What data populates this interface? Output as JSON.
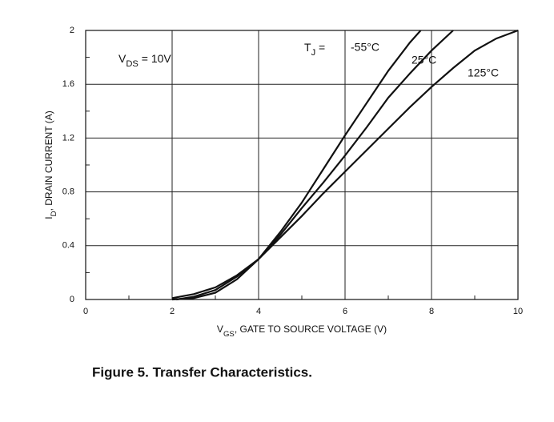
{
  "chart_data": {
    "type": "line",
    "caption": "Figure 5. Transfer Characteristics.",
    "xlabel": [
      "V",
      "GS",
      ", GATE TO SOURCE VOLTAGE (V)"
    ],
    "ylabel": [
      "I",
      "D",
      ", DRAIN CURRENT (A)"
    ],
    "annotation": [
      "V",
      "DS",
      " = 10V"
    ],
    "series_prefix": [
      "T",
      "J",
      " = "
    ],
    "xlim": [
      0,
      10
    ],
    "xticks": [
      0,
      2,
      4,
      6,
      8,
      10
    ],
    "xminorticks": [
      1,
      3,
      5,
      7,
      9
    ],
    "ylim": [
      0,
      2
    ],
    "yticks": [
      0,
      0.4,
      0.8,
      1.2,
      1.6,
      2
    ],
    "yminorticks": [
      0.2,
      0.6,
      1,
      1.4,
      1.8
    ],
    "grid": true,
    "series": [
      {
        "name": "-55°C",
        "color": "#111111",
        "x": [
          2,
          2.5,
          3,
          3.5,
          4,
          4.5,
          5,
          5.5,
          6,
          6.5,
          7,
          7.5,
          7.75
        ],
        "values": [
          0,
          0.01,
          0.05,
          0.15,
          0.3,
          0.5,
          0.72,
          0.97,
          1.22,
          1.46,
          1.7,
          1.91,
          2.0
        ]
      },
      {
        "name": "25°C",
        "color": "#111111",
        "x": [
          2.1,
          2.5,
          3,
          3.5,
          4,
          4.5,
          5,
          5.5,
          6,
          6.5,
          7,
          7.5,
          8,
          8.5
        ],
        "values": [
          0,
          0.02,
          0.07,
          0.17,
          0.3,
          0.48,
          0.68,
          0.87,
          1.07,
          1.28,
          1.5,
          1.68,
          1.85,
          2.0
        ]
      },
      {
        "name": "125°C",
        "color": "#111111",
        "x": [
          2,
          2.5,
          3,
          3.5,
          4,
          4.5,
          5,
          5.5,
          6,
          6.5,
          7,
          7.5,
          8,
          8.5,
          9,
          9.5,
          10
        ],
        "values": [
          0.01,
          0.04,
          0.09,
          0.18,
          0.3,
          0.46,
          0.62,
          0.79,
          0.95,
          1.11,
          1.27,
          1.43,
          1.58,
          1.72,
          1.85,
          1.94,
          2.0
        ]
      }
    ]
  }
}
